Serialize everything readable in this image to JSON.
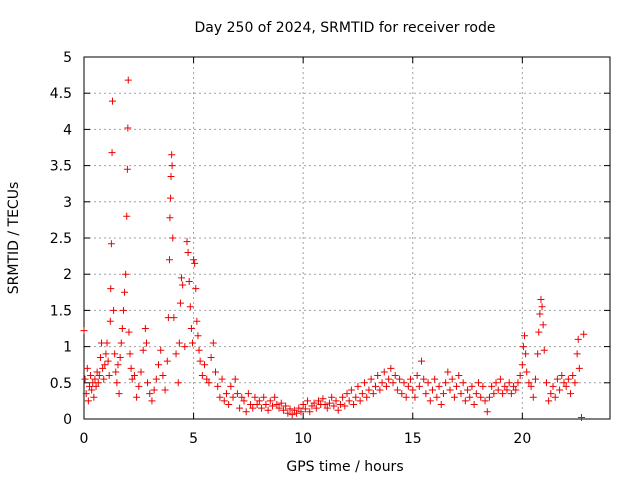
{
  "chart_data": {
    "type": "scatter",
    "title": "Day 250 of 2024, SRMTID for receiver rode",
    "xlabel": "GPS time / hours",
    "ylabel": "SRMTID / TECUs",
    "xlim": [
      0,
      24
    ],
    "ylim": [
      0,
      5
    ],
    "x_ticks": [
      0,
      5,
      10,
      15,
      20
    ],
    "x_tick_labels": [
      "0",
      "5",
      "10",
      "15",
      "20"
    ],
    "y_ticks": [
      0,
      0.5,
      1,
      1.5,
      2,
      2.5,
      3,
      3.5,
      4,
      4.5,
      5
    ],
    "y_tick_labels": [
      "0",
      "0.5",
      "1",
      "1.5",
      "2",
      "2.5",
      "3",
      "3.5",
      "4",
      "4.5",
      "5"
    ],
    "grid": true,
    "marker": "+",
    "marker_color": "#ee0000",
    "series": [
      {
        "name": "SRMTID",
        "points": [
          [
            0.0,
            1.22
          ],
          [
            0.05,
            0.55
          ],
          [
            0.1,
            0.35
          ],
          [
            0.15,
            0.7
          ],
          [
            0.2,
            0.25
          ],
          [
            0.25,
            0.45
          ],
          [
            0.3,
            0.6
          ],
          [
            0.35,
            0.4
          ],
          [
            0.4,
            0.5
          ],
          [
            0.45,
            0.3
          ],
          [
            0.5,
            0.55
          ],
          [
            0.55,
            0.45
          ],
          [
            0.6,
            0.65
          ],
          [
            0.65,
            0.5
          ],
          [
            0.7,
            0.6
          ],
          [
            0.75,
            0.85
          ],
          [
            0.8,
            1.05
          ],
          [
            0.85,
            0.7
          ],
          [
            0.9,
            0.55
          ],
          [
            0.95,
            0.75
          ],
          [
            1.0,
            0.9
          ],
          [
            1.05,
            1.05
          ],
          [
            1.1,
            0.8
          ],
          [
            1.15,
            0.6
          ],
          [
            1.2,
            1.35
          ],
          [
            1.22,
            1.8
          ],
          [
            1.25,
            2.42
          ],
          [
            1.28,
            3.68
          ],
          [
            1.3,
            4.39
          ],
          [
            1.35,
            1.5
          ],
          [
            1.4,
            0.9
          ],
          [
            1.45,
            0.65
          ],
          [
            1.5,
            0.5
          ],
          [
            1.55,
            0.75
          ],
          [
            1.6,
            0.35
          ],
          [
            1.65,
            0.85
          ],
          [
            1.7,
            1.05
          ],
          [
            1.75,
            1.25
          ],
          [
            1.8,
            1.5
          ],
          [
            1.85,
            1.75
          ],
          [
            1.9,
            2.0
          ],
          [
            1.95,
            2.8
          ],
          [
            1.98,
            3.45
          ],
          [
            2.0,
            4.02
          ],
          [
            2.02,
            4.68
          ],
          [
            2.05,
            1.2
          ],
          [
            2.1,
            0.9
          ],
          [
            2.15,
            0.7
          ],
          [
            2.2,
            0.55
          ],
          [
            2.3,
            0.6
          ],
          [
            2.4,
            0.3
          ],
          [
            2.5,
            0.45
          ],
          [
            2.6,
            0.65
          ],
          [
            2.7,
            0.95
          ],
          [
            2.8,
            1.25
          ],
          [
            2.85,
            1.05
          ],
          [
            2.9,
            0.5
          ],
          [
            3.0,
            0.35
          ],
          [
            3.1,
            0.25
          ],
          [
            3.2,
            0.4
          ],
          [
            3.3,
            0.55
          ],
          [
            3.4,
            0.75
          ],
          [
            3.5,
            0.95
          ],
          [
            3.6,
            0.6
          ],
          [
            3.7,
            0.4
          ],
          [
            3.8,
            0.8
          ],
          [
            3.85,
            1.4
          ],
          [
            3.9,
            2.2
          ],
          [
            3.92,
            2.78
          ],
          [
            3.95,
            3.05
          ],
          [
            3.97,
            3.35
          ],
          [
            4.0,
            3.65
          ],
          [
            4.02,
            3.5
          ],
          [
            4.05,
            2.5
          ],
          [
            4.1,
            1.4
          ],
          [
            4.2,
            0.9
          ],
          [
            4.3,
            0.5
          ],
          [
            4.35,
            1.05
          ],
          [
            4.4,
            1.6
          ],
          [
            4.45,
            1.95
          ],
          [
            4.5,
            1.85
          ],
          [
            4.6,
            1.0
          ],
          [
            4.7,
            2.45
          ],
          [
            4.75,
            2.3
          ],
          [
            4.8,
            1.9
          ],
          [
            4.85,
            1.55
          ],
          [
            4.9,
            1.25
          ],
          [
            4.95,
            1.05
          ],
          [
            5.0,
            2.2
          ],
          [
            5.05,
            2.15
          ],
          [
            5.1,
            1.8
          ],
          [
            5.15,
            1.35
          ],
          [
            5.2,
            1.15
          ],
          [
            5.25,
            0.95
          ],
          [
            5.3,
            0.8
          ],
          [
            5.4,
            0.6
          ],
          [
            5.5,
            0.75
          ],
          [
            5.6,
            0.55
          ],
          [
            5.7,
            0.5
          ],
          [
            5.8,
            0.85
          ],
          [
            5.9,
            1.05
          ],
          [
            6.0,
            0.65
          ],
          [
            6.1,
            0.45
          ],
          [
            6.2,
            0.3
          ],
          [
            6.3,
            0.55
          ],
          [
            6.4,
            0.25
          ],
          [
            6.5,
            0.35
          ],
          [
            6.6,
            0.2
          ],
          [
            6.7,
            0.45
          ],
          [
            6.8,
            0.3
          ],
          [
            6.9,
            0.55
          ],
          [
            7.0,
            0.35
          ],
          [
            7.1,
            0.15
          ],
          [
            7.2,
            0.3
          ],
          [
            7.3,
            0.25
          ],
          [
            7.4,
            0.1
          ],
          [
            7.5,
            0.35
          ],
          [
            7.6,
            0.2
          ],
          [
            7.7,
            0.15
          ],
          [
            7.8,
            0.3
          ],
          [
            7.9,
            0.2
          ],
          [
            8.0,
            0.25
          ],
          [
            8.1,
            0.15
          ],
          [
            8.2,
            0.3
          ],
          [
            8.3,
            0.2
          ],
          [
            8.4,
            0.12
          ],
          [
            8.5,
            0.25
          ],
          [
            8.6,
            0.18
          ],
          [
            8.7,
            0.3
          ],
          [
            8.8,
            0.2
          ],
          [
            8.9,
            0.15
          ],
          [
            9.0,
            0.22
          ],
          [
            9.1,
            0.12
          ],
          [
            9.2,
            0.18
          ],
          [
            9.3,
            0.08
          ],
          [
            9.4,
            0.14
          ],
          [
            9.5,
            0.06
          ],
          [
            9.6,
            0.12
          ],
          [
            9.7,
            0.08
          ],
          [
            9.8,
            0.15
          ],
          [
            9.9,
            0.1
          ],
          [
            10.0,
            0.2
          ],
          [
            10.1,
            0.14
          ],
          [
            10.2,
            0.25
          ],
          [
            10.3,
            0.1
          ],
          [
            10.4,
            0.18
          ],
          [
            10.5,
            0.22
          ],
          [
            10.6,
            0.15
          ],
          [
            10.7,
            0.25
          ],
          [
            10.8,
            0.2
          ],
          [
            10.9,
            0.28
          ],
          [
            11.0,
            0.2
          ],
          [
            11.1,
            0.15
          ],
          [
            11.2,
            0.22
          ],
          [
            11.3,
            0.3
          ],
          [
            11.4,
            0.18
          ],
          [
            11.5,
            0.25
          ],
          [
            11.6,
            0.12
          ],
          [
            11.7,
            0.2
          ],
          [
            11.8,
            0.3
          ],
          [
            11.9,
            0.18
          ],
          [
            12.0,
            0.35
          ],
          [
            12.1,
            0.25
          ],
          [
            12.2,
            0.4
          ],
          [
            12.3,
            0.2
          ],
          [
            12.4,
            0.3
          ],
          [
            12.5,
            0.45
          ],
          [
            12.6,
            0.25
          ],
          [
            12.7,
            0.35
          ],
          [
            12.8,
            0.5
          ],
          [
            12.9,
            0.3
          ],
          [
            13.0,
            0.4
          ],
          [
            13.1,
            0.55
          ],
          [
            13.2,
            0.35
          ],
          [
            13.3,
            0.45
          ],
          [
            13.4,
            0.6
          ],
          [
            13.5,
            0.4
          ],
          [
            13.6,
            0.5
          ],
          [
            13.7,
            0.65
          ],
          [
            13.8,
            0.45
          ],
          [
            13.9,
            0.55
          ],
          [
            14.0,
            0.7
          ],
          [
            14.1,
            0.5
          ],
          [
            14.2,
            0.6
          ],
          [
            14.3,
            0.4
          ],
          [
            14.4,
            0.55
          ],
          [
            14.5,
            0.35
          ],
          [
            14.6,
            0.5
          ],
          [
            14.7,
            0.3
          ],
          [
            14.8,
            0.45
          ],
          [
            14.9,
            0.55
          ],
          [
            15.0,
            0.4
          ],
          [
            15.1,
            0.3
          ],
          [
            15.2,
            0.6
          ],
          [
            15.3,
            0.45
          ],
          [
            15.4,
            0.8
          ],
          [
            15.5,
            0.55
          ],
          [
            15.6,
            0.35
          ],
          [
            15.7,
            0.5
          ],
          [
            15.8,
            0.25
          ],
          [
            15.9,
            0.4
          ],
          [
            16.0,
            0.55
          ],
          [
            16.1,
            0.3
          ],
          [
            16.2,
            0.45
          ],
          [
            16.3,
            0.2
          ],
          [
            16.4,
            0.35
          ],
          [
            16.5,
            0.5
          ],
          [
            16.6,
            0.65
          ],
          [
            16.7,
            0.4
          ],
          [
            16.8,
            0.55
          ],
          [
            16.9,
            0.3
          ],
          [
            17.0,
            0.45
          ],
          [
            17.1,
            0.6
          ],
          [
            17.2,
            0.35
          ],
          [
            17.3,
            0.5
          ],
          [
            17.4,
            0.25
          ],
          [
            17.5,
            0.4
          ],
          [
            17.6,
            0.3
          ],
          [
            17.7,
            0.45
          ],
          [
            17.8,
            0.2
          ],
          [
            17.9,
            0.35
          ],
          [
            18.0,
            0.5
          ],
          [
            18.1,
            0.3
          ],
          [
            18.2,
            0.45
          ],
          [
            18.3,
            0.25
          ],
          [
            18.4,
            0.1
          ],
          [
            18.5,
            0.3
          ],
          [
            18.6,
            0.45
          ],
          [
            18.7,
            0.35
          ],
          [
            18.8,
            0.5
          ],
          [
            18.9,
            0.4
          ],
          [
            19.0,
            0.55
          ],
          [
            19.1,
            0.35
          ],
          [
            19.2,
            0.45
          ],
          [
            19.3,
            0.4
          ],
          [
            19.4,
            0.5
          ],
          [
            19.5,
            0.35
          ],
          [
            19.6,
            0.45
          ],
          [
            19.7,
            0.4
          ],
          [
            19.8,
            0.5
          ],
          [
            19.9,
            0.6
          ],
          [
            20.0,
            0.75
          ],
          [
            20.05,
            1.0
          ],
          [
            20.1,
            1.15
          ],
          [
            20.15,
            0.9
          ],
          [
            20.2,
            0.65
          ],
          [
            20.3,
            0.5
          ],
          [
            20.4,
            0.45
          ],
          [
            20.5,
            0.3
          ],
          [
            20.6,
            0.55
          ],
          [
            20.7,
            0.9
          ],
          [
            20.75,
            1.2
          ],
          [
            20.8,
            1.45
          ],
          [
            20.85,
            1.65
          ],
          [
            20.9,
            1.55
          ],
          [
            20.95,
            1.3
          ],
          [
            21.0,
            0.95
          ],
          [
            21.1,
            0.5
          ],
          [
            21.2,
            0.25
          ],
          [
            21.3,
            0.35
          ],
          [
            21.4,
            0.45
          ],
          [
            21.5,
            0.3
          ],
          [
            21.6,
            0.55
          ],
          [
            21.7,
            0.4
          ],
          [
            21.8,
            0.6
          ],
          [
            21.9,
            0.5
          ],
          [
            22.0,
            0.45
          ],
          [
            22.1,
            0.55
          ],
          [
            22.2,
            0.35
          ],
          [
            22.3,
            0.6
          ],
          [
            22.4,
            0.5
          ],
          [
            22.5,
            0.9
          ],
          [
            22.55,
            1.1
          ],
          [
            22.6,
            0.7
          ],
          [
            22.7,
            0.02
          ],
          [
            22.8,
            1.17
          ]
        ]
      }
    ]
  }
}
